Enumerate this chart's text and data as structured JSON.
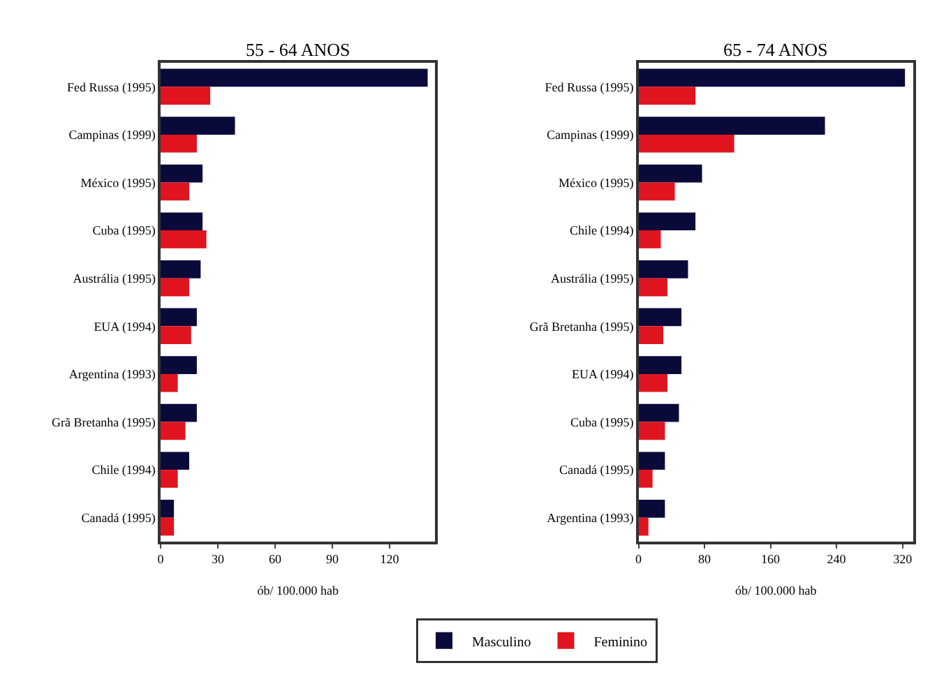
{
  "chart_data": [
    {
      "type": "bar",
      "orientation": "horizontal",
      "title": "55 - 64 ANOS",
      "xlabel": "ób/ 100.000 hab",
      "categories": [
        "Fed Russa (1995)",
        "Campinas (1999)",
        "México (1995)",
        "Cuba (1995)",
        "Austrália (1995)",
        "EUA (1994)",
        "Argentina (1993)",
        "Grã Bretanha (1995)",
        "Chile (1994)",
        "Canadá (1995)"
      ],
      "series": [
        {
          "name": "Masculino",
          "color": "#0a0a3a",
          "values": [
            140,
            39,
            22,
            22,
            21,
            19,
            19,
            19,
            15,
            7
          ]
        },
        {
          "name": "Feminino",
          "color": "#e0141e",
          "values": [
            26,
            19,
            15,
            24,
            15,
            16,
            9,
            13,
            9,
            7
          ]
        }
      ],
      "xlim": [
        0,
        144
      ],
      "xticks": [
        0,
        30,
        60,
        90,
        120
      ],
      "legend": "bottom"
    },
    {
      "type": "bar",
      "orientation": "horizontal",
      "title": "65 - 74 ANOS",
      "xlabel": "ób/ 100.000 hab",
      "categories": [
        "Fed Russa (1995)",
        "Campinas (1999)",
        "México (1995)",
        "Chile (1994)",
        "Austrália (1995)",
        "Grã Bretanha (1995)",
        "EUA (1994)",
        "Cuba (1995)",
        "Canadá (1995)",
        "Argentina (1993)"
      ],
      "series": [
        {
          "name": "Masculino",
          "color": "#0a0a3a",
          "values": [
            323,
            226,
            77,
            69,
            60,
            52,
            52,
            49,
            32,
            32
          ]
        },
        {
          "name": "Feminino",
          "color": "#e0141e",
          "values": [
            69,
            116,
            44,
            27,
            35,
            30,
            35,
            32,
            17,
            12
          ]
        }
      ],
      "xlim": [
        0,
        333
      ],
      "xticks": [
        0,
        80,
        160,
        240,
        320
      ]
    }
  ]
}
